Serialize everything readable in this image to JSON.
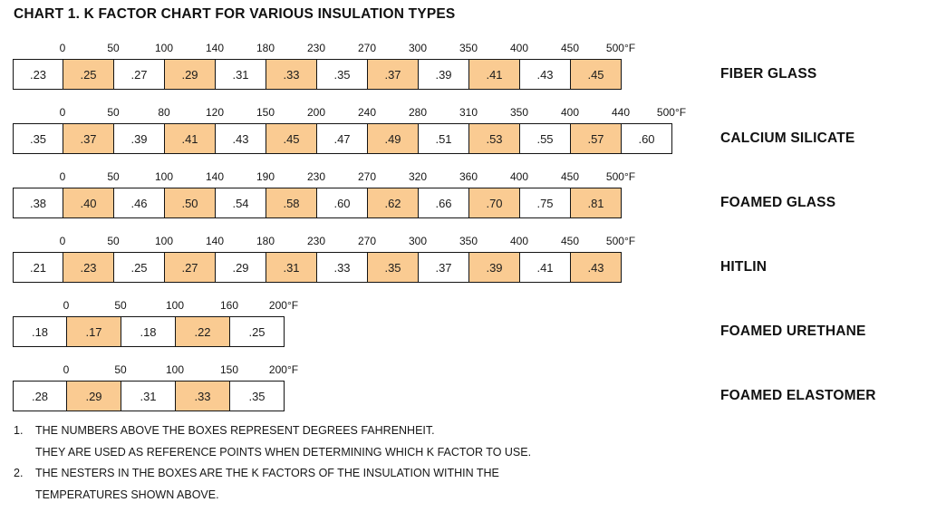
{
  "title": "CHART 1. K FACTOR CHART FOR VARIOUS INSULATION TYPES",
  "colors": {
    "highlight": "#facb92",
    "border": "#141414",
    "background": "#ffffff",
    "text": "#111111"
  },
  "chart_data": {
    "type": "table",
    "title": "CHART 1. K FACTOR CHART FOR VARIOUS INSULATION TYPES",
    "x_unit": "degrees Fahrenheit",
    "value_unit": "K factor",
    "rows": [
      {
        "label": "FIBER GLASS",
        "temps_f": [
          "0",
          "50",
          "100",
          "140",
          "180",
          "230",
          "270",
          "300",
          "350",
          "400",
          "450",
          "500°F"
        ],
        "k_factors": [
          ".23",
          ".25",
          ".27",
          ".29",
          ".31",
          ".33",
          ".35",
          ".37",
          ".39",
          ".41",
          ".43",
          ".45"
        ],
        "highlighted": [
          false,
          true,
          false,
          true,
          false,
          true,
          false,
          true,
          false,
          true,
          false,
          true
        ]
      },
      {
        "label": "CALCIUM SILICATE",
        "temps_f": [
          "0",
          "50",
          "80",
          "120",
          "150",
          "200",
          "240",
          "280",
          "310",
          "350",
          "400",
          "440",
          "500°F"
        ],
        "k_factors": [
          ".35",
          ".37",
          ".39",
          ".41",
          ".43",
          ".45",
          ".47",
          ".49",
          ".51",
          ".53",
          ".55",
          ".57",
          ".60"
        ],
        "highlighted": [
          false,
          true,
          false,
          true,
          false,
          true,
          false,
          true,
          false,
          true,
          false,
          true,
          false
        ]
      },
      {
        "label": "FOAMED GLASS",
        "temps_f": [
          "0",
          "50",
          "100",
          "140",
          "190",
          "230",
          "270",
          "320",
          "360",
          "400",
          "450",
          "500°F"
        ],
        "k_factors": [
          ".38",
          ".40",
          ".46",
          ".50",
          ".54",
          ".58",
          ".60",
          ".62",
          ".66",
          ".70",
          ".75",
          ".81"
        ],
        "highlighted": [
          false,
          true,
          false,
          true,
          false,
          true,
          false,
          true,
          false,
          true,
          false,
          true
        ]
      },
      {
        "label": "HITLIN",
        "temps_f": [
          "0",
          "50",
          "100",
          "140",
          "180",
          "230",
          "270",
          "300",
          "350",
          "400",
          "450",
          "500°F"
        ],
        "k_factors": [
          ".21",
          ".23",
          ".25",
          ".27",
          ".29",
          ".31",
          ".33",
          ".35",
          ".37",
          ".39",
          ".41",
          ".43"
        ],
        "highlighted": [
          false,
          true,
          false,
          true,
          false,
          true,
          false,
          true,
          false,
          true,
          false,
          true
        ]
      },
      {
        "label": "FOAMED URETHANE",
        "temps_f": [
          "0",
          "50",
          "100",
          "160",
          "200°F"
        ],
        "k_factors": [
          ".18",
          ".17",
          ".18",
          ".22",
          ".25"
        ],
        "highlighted": [
          false,
          true,
          false,
          true,
          false
        ]
      },
      {
        "label": "FOAMED ELASTOMER",
        "temps_f": [
          "0",
          "50",
          "100",
          "150",
          "200°F"
        ],
        "k_factors": [
          ".28",
          ".29",
          ".31",
          ".33",
          ".35"
        ],
        "highlighted": [
          false,
          true,
          false,
          true,
          false
        ]
      }
    ]
  },
  "notes": [
    {
      "num": "1.",
      "text": "THE NUMBERS ABOVE THE BOXES REPRESENT DEGREES FAHRENHEIT."
    },
    {
      "num": "",
      "text": "THEY ARE USED AS REFERENCE POINTS WHEN DETERMINING WHICH K FACTOR TO USE."
    },
    {
      "num": "2.",
      "text": "THE NESTERS IN THE BOXES ARE THE K FACTORS OF THE INSULATION WITHIN THE"
    },
    {
      "num": "",
      "text": "TEMPERATURES SHOWN ABOVE."
    }
  ]
}
